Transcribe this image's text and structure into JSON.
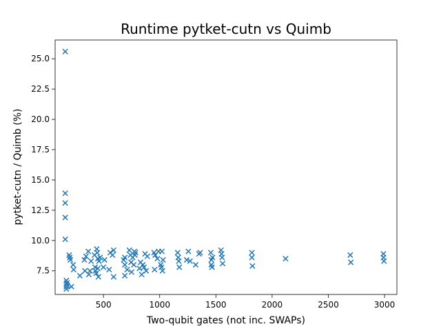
{
  "chart_data": {
    "type": "scatter",
    "title": "Runtime pytket-cutn vs Quimb",
    "xlabel": "Two-qubit gates (not inc. SWAPs)",
    "ylabel": "pytket-cutn / Quimb (%)",
    "xlim": [
      70,
      3110
    ],
    "ylim": [
      5.55,
      26.55
    ],
    "x_ticks": [
      500,
      1000,
      1500,
      2000,
      2500,
      3000
    ],
    "y_ticks": [
      7.5,
      10.0,
      12.5,
      15.0,
      17.5,
      20.0,
      22.5,
      25.0
    ],
    "x_tick_labels": [
      "500",
      "1000",
      "1500",
      "2000",
      "2500",
      "3000"
    ],
    "y_tick_labels": [
      "7.5",
      "10.0",
      "12.5",
      "15.0",
      "17.5",
      "20.0",
      "22.5",
      "25.0"
    ],
    "marker": "x",
    "marker_color": "#1f77b4",
    "grid": false,
    "legend": "none",
    "series": [
      {
        "points": [
          [
            160,
            25.6
          ],
          [
            160,
            13.9
          ],
          [
            160,
            13.1
          ],
          [
            160,
            11.9
          ],
          [
            160,
            10.1
          ],
          [
            170,
            6.7
          ],
          [
            170,
            6.4
          ],
          [
            170,
            6.2
          ],
          [
            170,
            6.0
          ],
          [
            175,
            6.5
          ],
          [
            180,
            6.3
          ],
          [
            195,
            8.8
          ],
          [
            200,
            8.6
          ],
          [
            205,
            8.4
          ],
          [
            215,
            6.2
          ],
          [
            230,
            8.0
          ],
          [
            235,
            7.6
          ],
          [
            290,
            7.1
          ],
          [
            330,
            8.4
          ],
          [
            335,
            7.5
          ],
          [
            345,
            8.7
          ],
          [
            365,
            9.1
          ],
          [
            370,
            7.2
          ],
          [
            380,
            7.5
          ],
          [
            390,
            8.3
          ],
          [
            420,
            8.8
          ],
          [
            425,
            7.8
          ],
          [
            430,
            7.5
          ],
          [
            435,
            7.3
          ],
          [
            440,
            9.3
          ],
          [
            445,
            9.0
          ],
          [
            450,
            8.5
          ],
          [
            450,
            7.7
          ],
          [
            455,
            7.0
          ],
          [
            460,
            8.3
          ],
          [
            470,
            8.6
          ],
          [
            500,
            7.8
          ],
          [
            510,
            8.4
          ],
          [
            550,
            7.6
          ],
          [
            560,
            9.0
          ],
          [
            580,
            8.8
          ],
          [
            590,
            7.0
          ],
          [
            590,
            9.2
          ],
          [
            680,
            8.4
          ],
          [
            690,
            8.0
          ],
          [
            690,
            7.1
          ],
          [
            690,
            8.6
          ],
          [
            710,
            7.6
          ],
          [
            730,
            9.2
          ],
          [
            740,
            8.8
          ],
          [
            745,
            8.2
          ],
          [
            750,
            7.4
          ],
          [
            760,
            8.6
          ],
          [
            770,
            8.0
          ],
          [
            775,
            9.1
          ],
          [
            780,
            8.8
          ],
          [
            785,
            9.0
          ],
          [
            820,
            7.7
          ],
          [
            830,
            8.2
          ],
          [
            840,
            7.2
          ],
          [
            850,
            8.0
          ],
          [
            860,
            7.8
          ],
          [
            870,
            8.9
          ],
          [
            880,
            7.5
          ],
          [
            890,
            8.7
          ],
          [
            950,
            9.0
          ],
          [
            955,
            7.6
          ],
          [
            960,
            8.8
          ],
          [
            980,
            8.5
          ],
          [
            990,
            9.1
          ],
          [
            1010,
            8.0
          ],
          [
            1015,
            7.8
          ],
          [
            1020,
            9.1
          ],
          [
            1025,
            7.5
          ],
          [
            1030,
            8.4
          ],
          [
            1160,
            9.0
          ],
          [
            1165,
            8.6
          ],
          [
            1170,
            8.3
          ],
          [
            1175,
            7.8
          ],
          [
            1240,
            8.4
          ],
          [
            1255,
            9.1
          ],
          [
            1270,
            8.3
          ],
          [
            1320,
            8.0
          ],
          [
            1350,
            8.9
          ],
          [
            1360,
            9.0
          ],
          [
            1455,
            9.0
          ],
          [
            1460,
            8.4
          ],
          [
            1460,
            8.0
          ],
          [
            1465,
            7.8
          ],
          [
            1470,
            8.6
          ],
          [
            1545,
            9.2
          ],
          [
            1550,
            8.9
          ],
          [
            1555,
            8.6
          ],
          [
            1560,
            8.1
          ],
          [
            1820,
            9.0
          ],
          [
            1820,
            8.6
          ],
          [
            1825,
            7.9
          ],
          [
            2120,
            8.5
          ],
          [
            2695,
            8.8
          ],
          [
            2700,
            8.2
          ],
          [
            2990,
            8.9
          ],
          [
            2990,
            8.6
          ],
          [
            2995,
            8.3
          ]
        ]
      }
    ]
  }
}
